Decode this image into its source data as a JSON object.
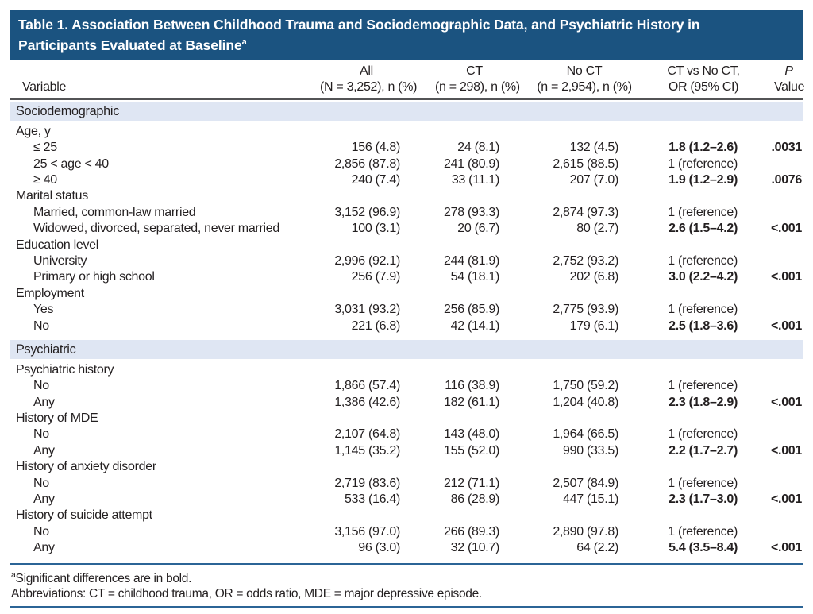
{
  "colors": {
    "title_bar": "#1b5380",
    "section_band": "#dfe6f3",
    "header_rule": "#535456",
    "blue_rule": "#2b6496",
    "text": "#231f20"
  },
  "table": {
    "title_line1": "Table 1. Association Between Childhood Trauma and Sociodemographic Data, and Psychiatric History in",
    "title_line2": "Participants Evaluated at Baseline",
    "title_superscript": "a",
    "header": {
      "cols": [
        {
          "line1": "",
          "line2": "Variable"
        },
        {
          "line1": "All",
          "line2": "(N = 3,252), n (%)"
        },
        {
          "line1": "CT",
          "line2": "(n = 298), n (%)"
        },
        {
          "line1": "No CT",
          "line2": "(n = 2,954), n (%)"
        },
        {
          "line1": "CT vs No CT,",
          "line2": "OR (95% CI)"
        },
        {
          "line1": "P",
          "line2": "Value"
        }
      ]
    },
    "sections": [
      {
        "name": "Sociodemographic",
        "groups": [
          {
            "label": "Age, y",
            "rows": [
              {
                "label": "≤ 25",
                "values": [
                  "156 (4.8)",
                  "24 (8.1)",
                  "132 (4.5)",
                  "1.8 (1.2–2.6)",
                  ".0031"
                ],
                "bold": true
              },
              {
                "label": "25 < age < 40",
                "values": [
                  "2,856 (87.8)",
                  "241 (80.9)",
                  "2,615 (88.5)",
                  "1 (reference)",
                  ""
                ],
                "bold": false
              },
              {
                "label": "≥ 40",
                "values": [
                  "240 (7.4)",
                  "33 (11.1)",
                  "207 (7.0)",
                  "1.9 (1.2–2.9)",
                  ".0076"
                ],
                "bold": true
              }
            ]
          },
          {
            "label": "Marital status",
            "rows": [
              {
                "label": "Married, common-law married",
                "values": [
                  "3,152 (96.9)",
                  "278 (93.3)",
                  "2,874 (97.3)",
                  "1 (reference)",
                  ""
                ],
                "bold": false
              },
              {
                "label": "Widowed, divorced, separated, never married",
                "values": [
                  "100 (3.1)",
                  "20 (6.7)",
                  "80 (2.7)",
                  "2.6 (1.5–4.2)",
                  "<.001"
                ],
                "bold": true
              }
            ]
          },
          {
            "label": "Education level",
            "rows": [
              {
                "label": "University",
                "values": [
                  "2,996 (92.1)",
                  "244 (81.9)",
                  "2,752 (93.2)",
                  "1 (reference)",
                  ""
                ],
                "bold": false
              },
              {
                "label": "Primary or high school",
                "values": [
                  "256 (7.9)",
                  "54 (18.1)",
                  "202 (6.8)",
                  "3.0 (2.2–4.2)",
                  "<.001"
                ],
                "bold": true
              }
            ]
          },
          {
            "label": "Employment",
            "rows": [
              {
                "label": "Yes",
                "values": [
                  "3,031 (93.2)",
                  "256 (85.9)",
                  "2,775 (93.9)",
                  "1 (reference)",
                  ""
                ],
                "bold": false
              },
              {
                "label": "No",
                "values": [
                  "221 (6.8)",
                  "42 (14.1)",
                  "179 (6.1)",
                  "2.5 (1.8–3.6)",
                  "<.001"
                ],
                "bold": true
              }
            ]
          }
        ]
      },
      {
        "name": "Psychiatric",
        "groups": [
          {
            "label": "Psychiatric history",
            "rows": [
              {
                "label": "No",
                "values": [
                  "1,866 (57.4)",
                  "116 (38.9)",
                  "1,750 (59.2)",
                  "1 (reference)",
                  ""
                ],
                "bold": false
              },
              {
                "label": "Any",
                "values": [
                  "1,386 (42.6)",
                  "182 (61.1)",
                  "1,204 (40.8)",
                  "2.3 (1.8–2.9)",
                  "<.001"
                ],
                "bold": true
              }
            ]
          },
          {
            "label": "History of MDE",
            "rows": [
              {
                "label": "No",
                "values": [
                  "2,107 (64.8)",
                  "143 (48.0)",
                  "1,964 (66.5)",
                  "1 (reference)",
                  ""
                ],
                "bold": false
              },
              {
                "label": "Any",
                "values": [
                  "1,145 (35.2)",
                  "155 (52.0)",
                  "990 (33.5)",
                  "2.2 (1.7–2.7)",
                  "<.001"
                ],
                "bold": true
              }
            ]
          },
          {
            "label": "History of anxiety disorder",
            "rows": [
              {
                "label": "No",
                "values": [
                  "2,719 (83.6)",
                  "212 (71.1)",
                  "2,507 (84.9)",
                  "1 (reference)",
                  ""
                ],
                "bold": false
              },
              {
                "label": "Any",
                "values": [
                  "533 (16.4)",
                  "86 (28.9)",
                  "447 (15.1)",
                  "2.3 (1.7–3.0)",
                  "<.001"
                ],
                "bold": true
              }
            ]
          },
          {
            "label": "History of suicide attempt",
            "rows": [
              {
                "label": "No",
                "values": [
                  "3,156 (97.0)",
                  "266 (89.3)",
                  "2,890 (97.8)",
                  "1 (reference)",
                  ""
                ],
                "bold": false
              },
              {
                "label": "Any",
                "values": [
                  "96 (3.0)",
                  "32 (10.7)",
                  "64 (2.2)",
                  "5.4 (3.5–8.4)",
                  "<.001"
                ],
                "bold": true
              }
            ]
          }
        ]
      }
    ],
    "footnotes": {
      "significance_superscript": "a",
      "significance_text": "Significant differences are in bold.",
      "abbreviations_text": "Abbreviations: CT = childhood trauma, OR = odds ratio, MDE = major depressive episode."
    }
  }
}
